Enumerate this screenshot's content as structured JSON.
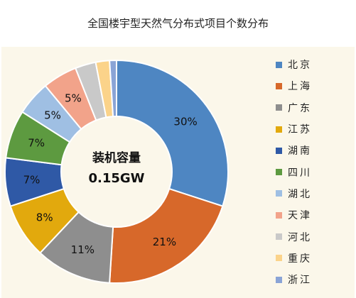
{
  "chart_data": {
    "type": "pie",
    "title": "全国楼宇型天然气分布式项目个数分布",
    "center_label": [
      "装机容量",
      "0.15GW"
    ],
    "legend_position": "right",
    "series": [
      {
        "name": "北京",
        "value": 30,
        "label": "30%",
        "color": "#4e86c2"
      },
      {
        "name": "上海",
        "value": 21,
        "label": "21%",
        "color": "#d7682a"
      },
      {
        "name": "广东",
        "value": 11,
        "label": "11%",
        "color": "#8e8e8e"
      },
      {
        "name": "江苏",
        "value": 8,
        "label": "8%",
        "color": "#e2a90d"
      },
      {
        "name": "湖南",
        "value": 7,
        "label": "7%",
        "color": "#2f59a6"
      },
      {
        "name": "四川",
        "value": 7,
        "label": "7%",
        "color": "#5d9a40"
      },
      {
        "name": "湖北",
        "value": 5,
        "label": "5%",
        "color": "#9fbfe3"
      },
      {
        "name": "天津",
        "value": 5,
        "label": "5%",
        "color": "#f2a38a"
      },
      {
        "name": "河北",
        "value": 3,
        "label": "",
        "color": "#c9c9c9"
      },
      {
        "name": "重庆",
        "value": 2,
        "label": "",
        "color": "#fbd38a"
      },
      {
        "name": "浙江",
        "value": 1,
        "label": "",
        "color": "#8aa4d6"
      }
    ]
  }
}
